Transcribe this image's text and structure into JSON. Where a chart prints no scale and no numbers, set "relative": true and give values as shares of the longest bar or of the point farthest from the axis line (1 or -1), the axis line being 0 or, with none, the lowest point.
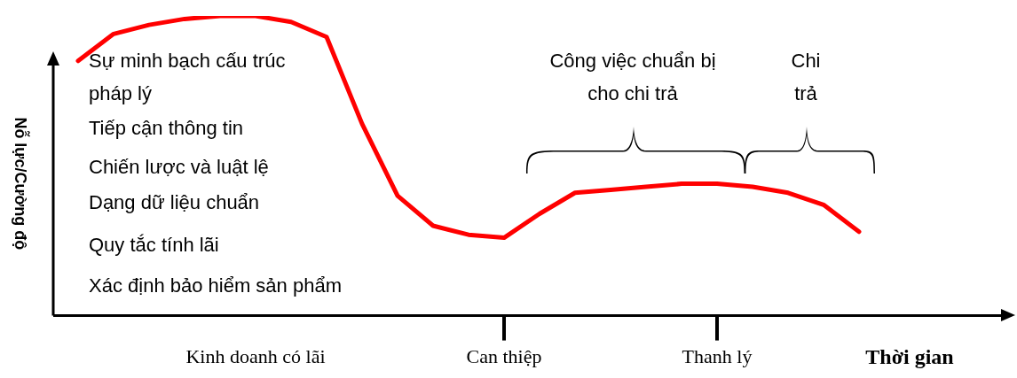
{
  "chart_data": {
    "type": "line",
    "relative": true,
    "legend": false,
    "grid": false,
    "marker": "none",
    "line_style": "solid",
    "xlabel": "Thời gian",
    "ylabel": "Nỗ lực/Cường độ",
    "categories": [
      null,
      null,
      null,
      null,
      null,
      null,
      "Kinh doanh có lãi",
      null,
      null,
      null,
      null,
      null,
      null,
      "Can thiệp",
      null,
      null,
      null,
      null,
      null,
      "Thanh lý",
      null,
      null,
      null,
      null,
      null,
      null,
      null,
      null
    ],
    "series": [
      {
        "color": "#ff0000",
        "values": [
          null,
          0.85,
          0.94,
          0.97,
          0.99,
          1.0,
          1.0,
          0.98,
          0.93,
          0.64,
          0.4,
          0.3,
          0.27,
          0.26,
          0.34,
          0.41,
          0.42,
          0.43,
          0.44,
          0.44,
          0.43,
          0.41,
          0.37,
          0.28,
          null,
          null,
          null,
          null
        ]
      }
    ],
    "annotations": [
      "Sự minh bạch cấu trúc pháp lý",
      "Tiếp cận thông tin",
      "Chiến lược và luật lệ",
      "Dạng dữ liệu chuẩn",
      "Quy tắc tính lãi",
      "Xác định bảo hiểm sản phẩm",
      "Công việc chuẩn bị cho chi trả",
      "Chi trả"
    ]
  }
}
